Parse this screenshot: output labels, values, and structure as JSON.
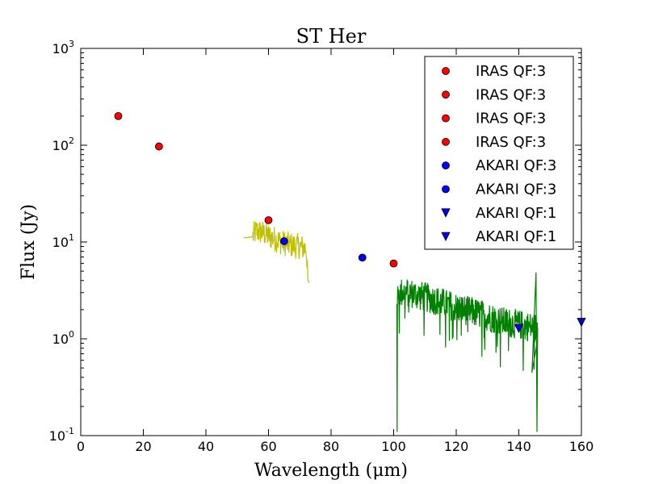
{
  "chart_data": {
    "type": "scatter",
    "title": "ST Her",
    "xlabel": "Wavelength (μm)",
    "ylabel": "Flux (Jy)",
    "xlim": [
      0,
      160
    ],
    "ylim": [
      0.1,
      1000
    ],
    "yscale": "log",
    "xticks": [
      "0",
      "20",
      "40",
      "60",
      "80",
      "100",
      "120",
      "140",
      "160"
    ],
    "yticks": [
      {
        "base": "10",
        "exp": "-1",
        "value": 0.1
      },
      {
        "base": "10",
        "exp": "0",
        "value": 1
      },
      {
        "base": "10",
        "exp": "1",
        "value": 10
      },
      {
        "base": "10",
        "exp": "2",
        "value": 100
      },
      {
        "base": "10",
        "exp": "3",
        "value": 1000
      }
    ],
    "legend_position": "top-right",
    "series": [
      {
        "name": "IRAS QF:3",
        "marker": "circle",
        "color": "#ff0000",
        "x": [
          12
        ],
        "y": [
          200
        ]
      },
      {
        "name": "IRAS QF:3",
        "marker": "circle",
        "color": "#ff0000",
        "x": [
          25
        ],
        "y": [
          97
        ]
      },
      {
        "name": "IRAS QF:3",
        "marker": "circle",
        "color": "#ff0000",
        "x": [
          60
        ],
        "y": [
          16.8
        ]
      },
      {
        "name": "IRAS QF:3",
        "marker": "circle",
        "color": "#ff0000",
        "x": [
          100
        ],
        "y": [
          6.0
        ]
      },
      {
        "name": "AKARI QF:3",
        "marker": "circle",
        "color": "#0000ff",
        "x": [
          65
        ],
        "y": [
          10.2
        ]
      },
      {
        "name": "AKARI QF:3",
        "marker": "circle",
        "color": "#0000ff",
        "x": [
          90
        ],
        "y": [
          6.9
        ]
      },
      {
        "name": "AKARI QF:1",
        "marker": "triangle-down",
        "color": "#0000ff",
        "x": [
          140
        ],
        "y": [
          1.28
        ]
      },
      {
        "name": "AKARI QF:1",
        "marker": "triangle-down",
        "color": "#0000ff",
        "x": [
          160
        ],
        "y": [
          1.48
        ]
      }
    ],
    "spectra": [
      {
        "name": "spectrum-yellow",
        "color": "#bfbf00",
        "x_range": [
          52,
          73
        ],
        "start_level": 11,
        "points": [
          [
            52,
            11
          ],
          [
            55,
            11.5
          ],
          [
            56,
            13
          ],
          [
            58,
            12.5
          ],
          [
            60,
            11.5
          ],
          [
            62,
            10.8
          ],
          [
            64,
            10
          ],
          [
            66,
            9.5
          ],
          [
            68,
            9.2
          ],
          [
            70,
            9
          ],
          [
            72,
            8.5
          ],
          [
            73,
            4
          ]
        ]
      },
      {
        "name": "spectrum-green",
        "color": "#008000",
        "x_range": [
          101,
          146
        ],
        "points": [
          [
            101,
            2.3
          ],
          [
            102,
            3
          ],
          [
            105,
            3
          ],
          [
            108,
            2.8
          ],
          [
            110,
            2.7
          ],
          [
            115,
            2.4
          ],
          [
            120,
            2.1
          ],
          [
            125,
            1.9
          ],
          [
            130,
            1.7
          ],
          [
            135,
            1.5
          ],
          [
            140,
            1.4
          ],
          [
            145,
            1.3
          ],
          [
            146,
            1.3
          ]
        ]
      }
    ]
  }
}
